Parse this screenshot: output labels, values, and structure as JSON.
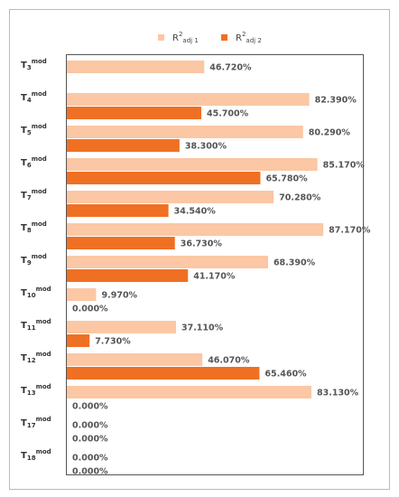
{
  "chart_data": {
    "type": "bar",
    "orientation": "horizontal",
    "categories": [
      "T3mod",
      "T4mod",
      "T5mod",
      "T6mod",
      "T7mod",
      "T8mod",
      "T9mod",
      "T10mod",
      "T11mod",
      "T12mod",
      "T13mod",
      "T17mod",
      "T18mod"
    ],
    "series": [
      {
        "name": "R2adj 1",
        "color": "#fbc7a4",
        "values": [
          46.72,
          82.39,
          80.29,
          85.17,
          70.28,
          87.17,
          68.39,
          9.97,
          37.11,
          46.07,
          83.13,
          0,
          0
        ],
        "value_labels": [
          "46.720%",
          "82.390%",
          "80.290%",
          "85.170%",
          "70.280%",
          "87.170%",
          "68.390%",
          "9.970%",
          "37.110%",
          "46.070%",
          "83.130%",
          "0.000%",
          "0.000%"
        ]
      },
      {
        "name": "R2adj 2",
        "color": "#f07023",
        "values": [
          null,
          45.7,
          38.3,
          65.78,
          34.54,
          36.73,
          41.17,
          0,
          7.73,
          65.46,
          0,
          0,
          0
        ],
        "value_labels": [
          null,
          "45.700%",
          "38.300%",
          "65.780%",
          "34.540%",
          "36.730%",
          "41.170%",
          "0.000%",
          "7.730%",
          "65.460%",
          "0.000%",
          "0.000%",
          "0.000%"
        ]
      }
    ],
    "legend": "top"
  }
}
